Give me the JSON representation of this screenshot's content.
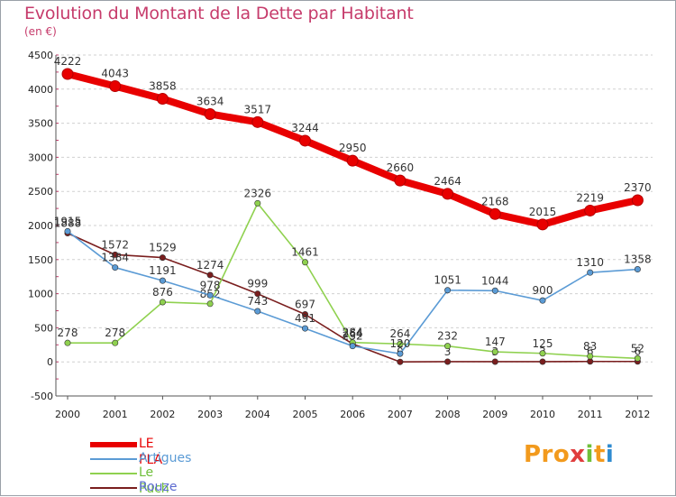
{
  "title": "Evolution du Montant de la Dette par Habitant",
  "subtitle": "(en €)",
  "brand": {
    "p1": "Pro",
    "p2": "x",
    "p3": "i",
    "p4": "t",
    "p5": "i"
  },
  "colors": {
    "title": "#c63b6b",
    "grid": "#d0d0d0"
  },
  "chart_data": {
    "type": "line",
    "title": "Evolution du Montant de la Dette par Habitant",
    "subtitle": "(en €)",
    "xlabel": "",
    "ylabel": "",
    "x": [
      "2000",
      "2001",
      "2002",
      "2003",
      "2004",
      "2005",
      "2006",
      "2007",
      "2008",
      "2009",
      "2010",
      "2011",
      "2012"
    ],
    "ylim": [
      -500,
      4500
    ],
    "yticks": [
      "-500",
      "0",
      "500",
      "1000",
      "1500",
      "2000",
      "2500",
      "3000",
      "3500",
      "4000",
      "4500"
    ],
    "grid": "horizontal dashed",
    "legend": "bottom-left",
    "series": [
      {
        "name": "LE PLA",
        "color": "#e80000",
        "values": [
          4222,
          4043,
          3858,
          3634,
          3517,
          3244,
          2950,
          2660,
          2464,
          2168,
          2015,
          2219,
          2370
        ],
        "labels": [
          "4222",
          "4043",
          "3858",
          "3634",
          "3517",
          "3244",
          "2950",
          "2660",
          "2464",
          "2168",
          "2015",
          "2219",
          "2370"
        ]
      },
      {
        "name": "Artigues",
        "color": "#5b9bd5",
        "values": [
          1915,
          1384,
          1191,
          978,
          743,
          491,
          232,
          120,
          1051,
          1044,
          900,
          1310,
          1358
        ],
        "labels": [
          "1915",
          "1384",
          "1191",
          "978",
          "743",
          "491",
          "232",
          "120",
          "1051",
          "1044",
          "900",
          "1310",
          "1358"
        ]
      },
      {
        "name": "Le Puch",
        "color": "#8fd14f",
        "values": [
          278,
          278,
          876,
          852,
          2326,
          1461,
          284,
          264,
          232,
          147,
          125,
          83,
          52
        ],
        "labels": [
          "278",
          "278",
          "876",
          "852",
          "2326",
          "1461",
          "284",
          "264",
          "232",
          "147",
          "125",
          "83",
          "52"
        ]
      },
      {
        "name": "Rouze",
        "color": "#7a1e1e",
        "values": [
          1888,
          1572,
          1529,
          1274,
          999,
          697,
          264,
          0,
          3,
          3,
          3,
          6,
          6
        ],
        "labels": [
          "1888",
          "1572",
          "1529",
          "1274",
          "999",
          "697",
          "264",
          "0",
          "3",
          "3",
          "3",
          "6",
          "6"
        ]
      }
    ]
  }
}
